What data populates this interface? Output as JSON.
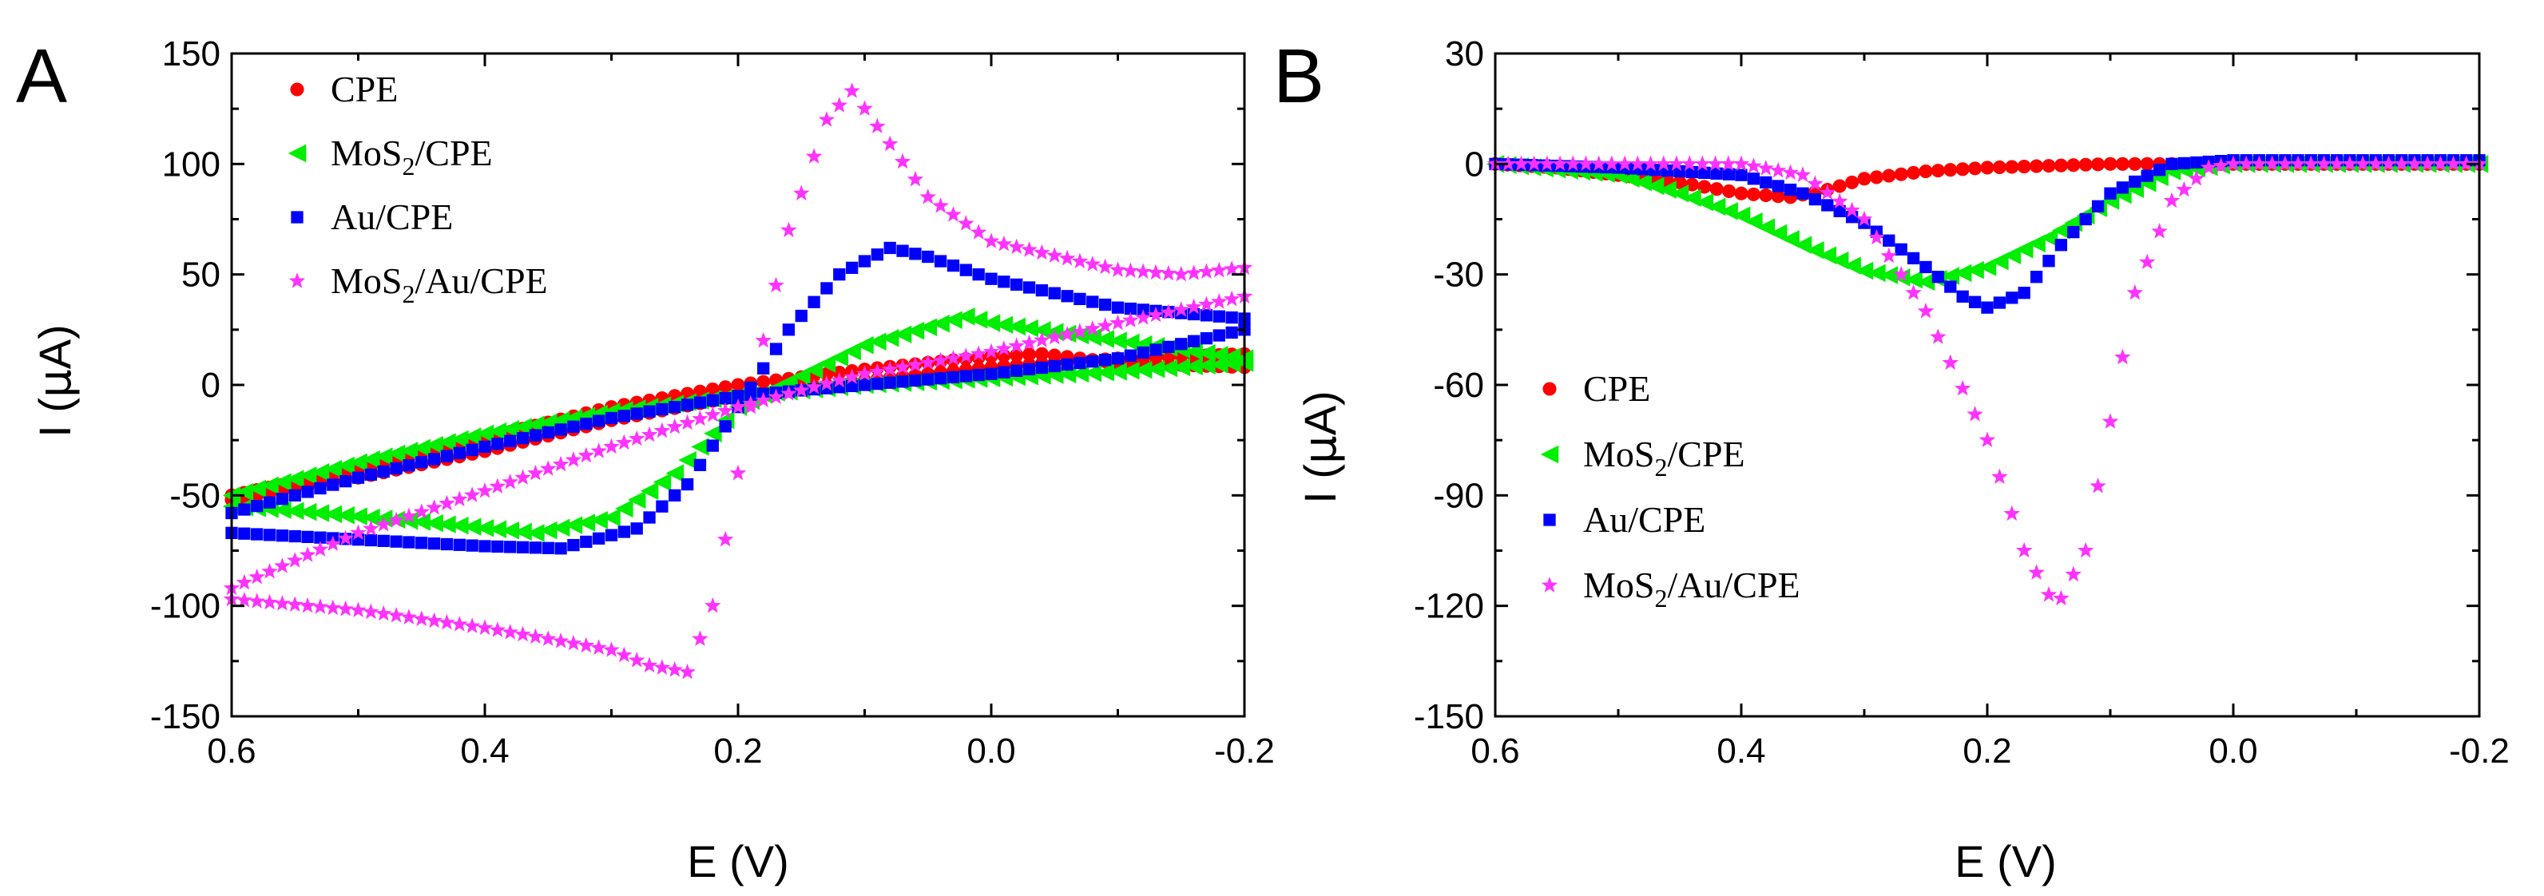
{
  "chart_data": [
    {
      "type": "scatter",
      "panel_label": "A",
      "xlabel": "E (V)",
      "ylabel": "I (μA)",
      "ylabel_parts": [
        "I (",
        "μ",
        "A)"
      ],
      "xlim": [
        0.6,
        -0.2
      ],
      "ylim": [
        -150,
        150
      ],
      "xticks": [
        0.6,
        0.4,
        0.2,
        0.0,
        -0.2
      ],
      "xtick_labels": [
        "0.6",
        "0.4",
        "0.2",
        "0.0",
        "-0.2"
      ],
      "yticks": [
        -150,
        -100,
        -50,
        0,
        50,
        100,
        150
      ],
      "ytick_labels": [
        "-150",
        "-100",
        "-50",
        "0",
        "50",
        "100",
        "150"
      ],
      "legend_position": "top-left",
      "series": [
        {
          "name": "CPE",
          "legend_parts": [
            "CPE"
          ],
          "color": "#ff0000",
          "marker": "circle",
          "forward": [
            [
              0.6,
              -52
            ],
            [
              0.5,
              -42
            ],
            [
              0.4,
              -30
            ],
            [
              0.3,
              -16
            ],
            [
              0.2,
              -5
            ],
            [
              0.1,
              2
            ],
            [
              0.0,
              8
            ],
            [
              -0.1,
              12
            ],
            [
              -0.2,
              14
            ]
          ],
          "reverse": [
            [
              -0.2,
              8
            ],
            [
              -0.1,
              10
            ],
            [
              -0.04,
              14
            ],
            [
              0.0,
              13
            ],
            [
              0.1,
              7
            ],
            [
              0.2,
              0
            ],
            [
              0.3,
              -10
            ],
            [
              0.4,
              -24
            ],
            [
              0.5,
              -38
            ],
            [
              0.6,
              -50
            ]
          ]
        },
        {
          "name": "MoS2/CPE",
          "legend_parts": [
            "MoS",
            "2",
            "/CPE"
          ],
          "color": "#00ee00",
          "marker": "triangle-left",
          "forward": [
            [
              0.6,
              -50
            ],
            [
              0.5,
              -35
            ],
            [
              0.4,
              -22
            ],
            [
              0.3,
              -12
            ],
            [
              0.2,
              -5
            ],
            [
              0.1,
              0
            ],
            [
              0.0,
              3
            ],
            [
              -0.1,
              6
            ],
            [
              -0.2,
              10
            ]
          ],
          "reverse": [
            [
              -0.2,
              12
            ],
            [
              -0.1,
              20
            ],
            [
              0.0,
              28
            ],
            [
              0.02,
              31
            ],
            [
              0.1,
              18
            ],
            [
              0.2,
              -10
            ],
            [
              0.25,
              -40
            ],
            [
              0.3,
              -60
            ],
            [
              0.36,
              -67
            ],
            [
              0.45,
              -62
            ],
            [
              0.55,
              -57
            ],
            [
              0.6,
              -55
            ]
          ]
        },
        {
          "name": "Au/CPE",
          "legend_parts": [
            "Au/CPE"
          ],
          "color": "#0000ff",
          "marker": "square",
          "forward": [
            [
              0.6,
              -58
            ],
            [
              0.5,
              -42
            ],
            [
              0.4,
              -28
            ],
            [
              0.3,
              -15
            ],
            [
              0.2,
              -5
            ],
            [
              0.1,
              0
            ],
            [
              0.0,
              5
            ],
            [
              -0.1,
              12
            ],
            [
              -0.2,
              25
            ]
          ],
          "reverse": [
            [
              -0.2,
              30
            ],
            [
              -0.1,
              35
            ],
            [
              0.0,
              48
            ],
            [
              0.05,
              58
            ],
            [
              0.08,
              62
            ],
            [
              0.12,
              50
            ],
            [
              0.16,
              25
            ],
            [
              0.2,
              -10
            ],
            [
              0.24,
              -45
            ],
            [
              0.28,
              -65
            ],
            [
              0.34,
              -74
            ],
            [
              0.4,
              -73
            ],
            [
              0.5,
              -70
            ],
            [
              0.6,
              -67
            ]
          ]
        },
        {
          "name": "MoS2/Au/CPE",
          "legend_parts": [
            "MoS",
            "2",
            "/Au/CPE"
          ],
          "color": "#ff33ff",
          "marker": "star",
          "forward": [
            [
              0.6,
              -92
            ],
            [
              0.5,
              -67
            ],
            [
              0.4,
              -48
            ],
            [
              0.3,
              -28
            ],
            [
              0.2,
              -10
            ],
            [
              0.1,
              5
            ],
            [
              0.0,
              15
            ],
            [
              -0.1,
              28
            ],
            [
              -0.2,
              40
            ]
          ],
          "reverse": [
            [
              -0.2,
              53
            ],
            [
              -0.15,
              50
            ],
            [
              -0.1,
              52
            ],
            [
              0.0,
              65
            ],
            [
              0.05,
              85
            ],
            [
              0.1,
              125
            ],
            [
              0.11,
              133
            ],
            [
              0.13,
              120
            ],
            [
              0.16,
              70
            ],
            [
              0.18,
              20
            ],
            [
              0.2,
              -40
            ],
            [
              0.22,
              -100
            ],
            [
              0.24,
              -130
            ],
            [
              0.27,
              -127
            ],
            [
              0.3,
              -120
            ],
            [
              0.4,
              -110
            ],
            [
              0.5,
              -102
            ],
            [
              0.6,
              -97
            ]
          ]
        }
      ]
    },
    {
      "type": "scatter",
      "panel_label": "B",
      "xlabel": "E (V)",
      "ylabel": "I (μA)",
      "ylabel_parts": [
        "I (",
        "μ",
        "A)"
      ],
      "xlim": [
        0.6,
        -0.2
      ],
      "ylim": [
        -150,
        30
      ],
      "xticks": [
        0.6,
        0.4,
        0.2,
        0.0,
        -0.2
      ],
      "xtick_labels": [
        "0.6",
        "0.4",
        "0.2",
        "0.0",
        "-0.2"
      ],
      "yticks": [
        -150,
        -120,
        -90,
        -60,
        -30,
        0,
        30
      ],
      "ytick_labels": [
        "-150",
        "-120",
        "-90",
        "-60",
        "-30",
        "0",
        "30"
      ],
      "legend_position": "center-left",
      "series": [
        {
          "name": "CPE",
          "legend_parts": [
            "CPE"
          ],
          "color": "#ff0000",
          "marker": "circle",
          "points": [
            [
              0.6,
              0
            ],
            [
              0.55,
              -1
            ],
            [
              0.5,
              -3
            ],
            [
              0.45,
              -5
            ],
            [
              0.4,
              -8
            ],
            [
              0.36,
              -9
            ],
            [
              0.33,
              -7
            ],
            [
              0.3,
              -4
            ],
            [
              0.25,
              -2
            ],
            [
              0.2,
              -1
            ],
            [
              0.1,
              0
            ],
            [
              0.0,
              0
            ],
            [
              -0.2,
              0
            ]
          ]
        },
        {
          "name": "MoS2/CPE",
          "legend_parts": [
            "MoS",
            "2",
            "/CPE"
          ],
          "color": "#00ee00",
          "marker": "triangle-left",
          "points": [
            [
              0.6,
              0
            ],
            [
              0.5,
              -3
            ],
            [
              0.45,
              -8
            ],
            [
              0.4,
              -14
            ],
            [
              0.35,
              -22
            ],
            [
              0.3,
              -29
            ],
            [
              0.25,
              -32
            ],
            [
              0.2,
              -28
            ],
            [
              0.15,
              -20
            ],
            [
              0.1,
              -10
            ],
            [
              0.05,
              -2
            ],
            [
              0.0,
              0
            ],
            [
              -0.2,
              0
            ]
          ]
        },
        {
          "name": "Au/CPE",
          "legend_parts": [
            "Au/CPE"
          ],
          "color": "#0000ff",
          "marker": "square",
          "points": [
            [
              0.6,
              0
            ],
            [
              0.5,
              -1
            ],
            [
              0.4,
              -3
            ],
            [
              0.35,
              -8
            ],
            [
              0.3,
              -16
            ],
            [
              0.25,
              -28
            ],
            [
              0.22,
              -36
            ],
            [
              0.2,
              -39
            ],
            [
              0.17,
              -35
            ],
            [
              0.14,
              -22
            ],
            [
              0.1,
              -8
            ],
            [
              0.05,
              0
            ],
            [
              0.0,
              1
            ],
            [
              -0.2,
              1
            ]
          ]
        },
        {
          "name": "MoS2/Au/CPE",
          "legend_parts": [
            "MoS",
            "2",
            "/Au/CPE"
          ],
          "color": "#ff33ff",
          "marker": "star",
          "points": [
            [
              0.6,
              0
            ],
            [
              0.4,
              0
            ],
            [
              0.35,
              -3
            ],
            [
              0.3,
              -15
            ],
            [
              0.25,
              -40
            ],
            [
              0.2,
              -75
            ],
            [
              0.17,
              -105
            ],
            [
              0.15,
              -117
            ],
            [
              0.14,
              -118
            ],
            [
              0.12,
              -105
            ],
            [
              0.1,
              -70
            ],
            [
              0.08,
              -35
            ],
            [
              0.05,
              -10
            ],
            [
              0.02,
              -1
            ],
            [
              0.0,
              0
            ],
            [
              -0.2,
              0
            ]
          ]
        }
      ]
    }
  ]
}
